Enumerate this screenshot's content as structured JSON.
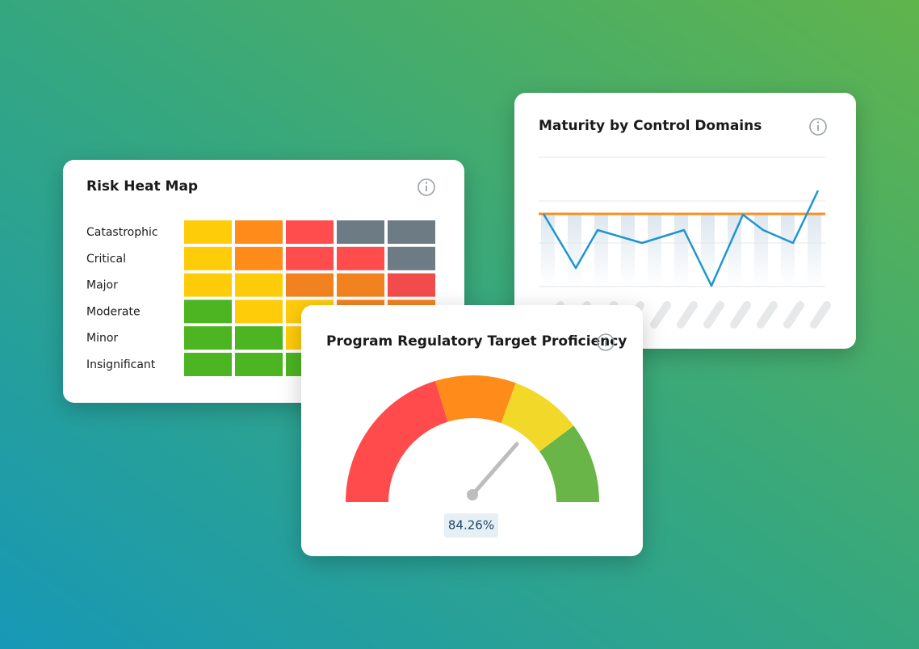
{
  "cards": [
    {
      "title": "Risk Heat Map",
      "rows": [
        "Catastrophic",
        "Critical",
        "Major",
        "Moderate",
        "Minor",
        "Insignificant"
      ]
    },
    {
      "title": "Maturity by Control Domains"
    },
    {
      "title": "Program Regulatory Target Proficiency",
      "value_label": "84.26%"
    }
  ]
}
